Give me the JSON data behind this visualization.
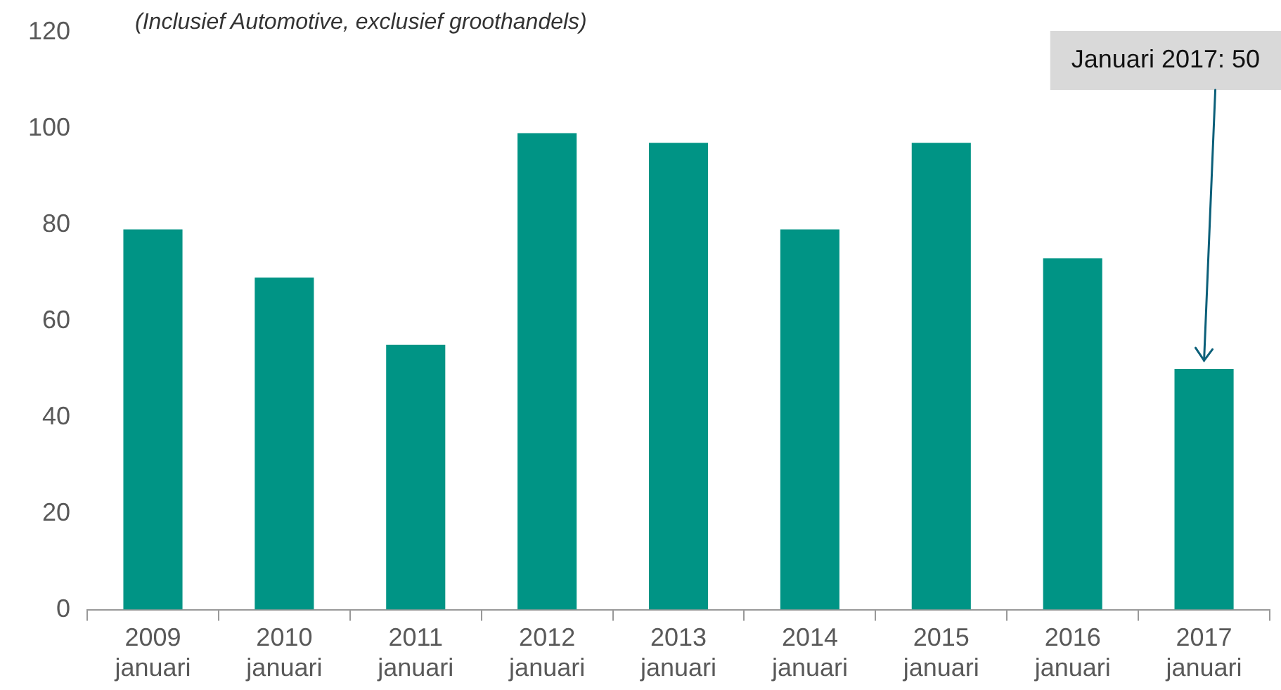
{
  "chart_data": {
    "type": "bar",
    "subtitle": "(Inclusief Automotive, exclusief groothandels)",
    "categories": [
      "2009\njanuari",
      "2010\njanuari",
      "2011\njanuari",
      "2012\njanuari",
      "2013\njanuari",
      "2014\njanuari",
      "2015\njanuari",
      "2016\njanuari",
      "2017\njanuari"
    ],
    "values": [
      79,
      69,
      55,
      99,
      97,
      79,
      97,
      73,
      50
    ],
    "color": "#009485",
    "ylim": [
      0,
      120
    ],
    "yticks": [
      0,
      20,
      40,
      60,
      80,
      100,
      120
    ],
    "grid": false,
    "annotations": [
      "Januari 2017: 50"
    ]
  }
}
